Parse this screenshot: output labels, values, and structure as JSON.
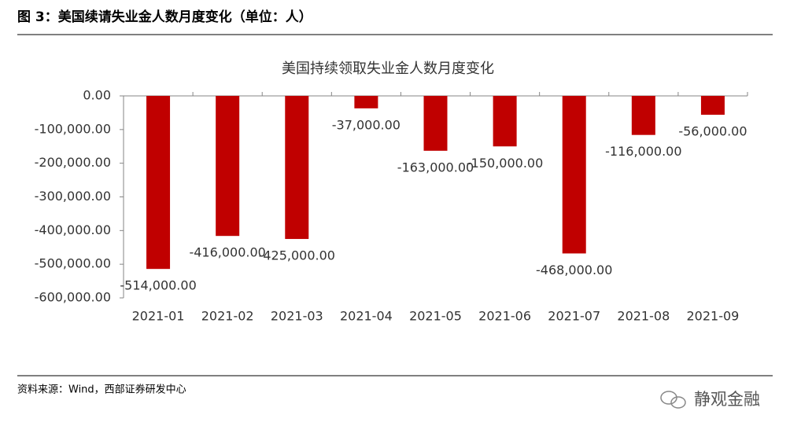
{
  "header": {
    "title": "图 3：美国续请失业金人数月度变化（单位：人）"
  },
  "chart_data": {
    "type": "bar",
    "title": "美国持续领取失业金人数月度变化",
    "categories": [
      "2021-01",
      "2021-02",
      "2021-03",
      "2021-04",
      "2021-05",
      "2021-06",
      "2021-07",
      "2021-08",
      "2021-09"
    ],
    "values": [
      -514000,
      -416000,
      -425000,
      -37000,
      -163000,
      -150000,
      -468000,
      -116000,
      -56000
    ],
    "value_labels": [
      "-514,000.00",
      "-416,000.00",
      "-425,000.00",
      "-37,000.00",
      "-163,000.00",
      "-150,000.00",
      "-468,000.00",
      "-116,000.00",
      "-56,000.00"
    ],
    "color": "#c00000",
    "ylim": [
      -600000,
      0
    ],
    "yticks": [
      {
        "value": 0,
        "label": "0.00"
      },
      {
        "value": -100000,
        "label": "-100,000.00"
      },
      {
        "value": -200000,
        "label": "-200,000.00"
      },
      {
        "value": -300000,
        "label": "-300,000.00"
      },
      {
        "value": -400000,
        "label": "-400,000.00"
      },
      {
        "value": -500000,
        "label": "-500,000.00"
      },
      {
        "value": -600000,
        "label": "-600,000.00"
      }
    ],
    "grid": false
  },
  "footer": {
    "source": "资料来源：Wind，西部证券研发中心",
    "watermark": "静观金融"
  }
}
